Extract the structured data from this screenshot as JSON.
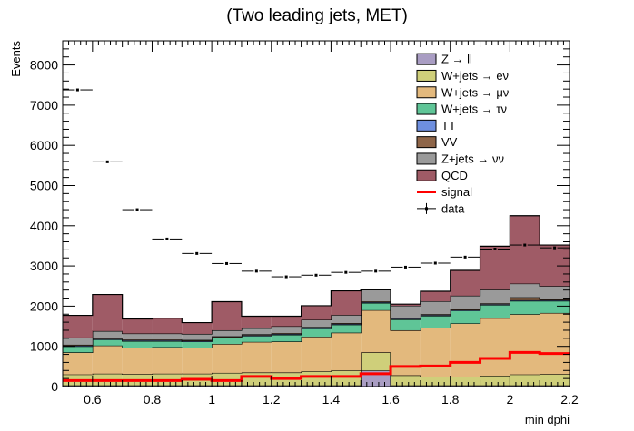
{
  "chart_data": {
    "type": "stacked-histogram",
    "title": "(Two leading jets, MET)",
    "xlabel": "min dphi",
    "ylabel": "Events",
    "xlim": [
      0.5,
      2.2
    ],
    "ylim": [
      0,
      8600
    ],
    "x_ticks": [
      0.6,
      0.8,
      1,
      1.2,
      1.4,
      1.6,
      1.8,
      2,
      2.2
    ],
    "x_tick_labels": [
      "0.6",
      "0.8",
      "1",
      "1.2",
      "1.4",
      "1.6",
      "1.8",
      "2",
      "2.2"
    ],
    "y_ticks": [
      0,
      1000,
      2000,
      3000,
      4000,
      5000,
      6000,
      7000,
      8000
    ],
    "y_tick_labels": [
      "0",
      "1000",
      "2000",
      "3000",
      "4000",
      "5000",
      "6000",
      "7000",
      "8000"
    ],
    "bin_edges": [
      0.5,
      0.6,
      0.7,
      0.8,
      0.9,
      1.0,
      1.1,
      1.2,
      1.3,
      1.4,
      1.5,
      1.6,
      1.7,
      1.8,
      1.9,
      2.0,
      2.1,
      2.2
    ],
    "stack": [
      {
        "name": "Z → ll",
        "color": "#a99dc3",
        "values": [
          30,
          30,
          30,
          30,
          30,
          30,
          30,
          30,
          30,
          30,
          400,
          30,
          30,
          30,
          30,
          30,
          30
        ]
      },
      {
        "name": "W+jets → eν",
        "color": "#cfcf7a",
        "values": [
          270,
          290,
          280,
          290,
          290,
          310,
          320,
          320,
          350,
          370,
          450,
          250,
          210,
          210,
          240,
          270,
          280
        ]
      },
      {
        "name": "W+jets → μν",
        "color": "#e3b97d",
        "values": [
          550,
          700,
          660,
          660,
          650,
          720,
          760,
          770,
          860,
          940,
          1050,
          1120,
          1220,
          1330,
          1430,
          1500,
          1520
        ]
      },
      {
        "name": "W+jets → τν",
        "color": "#5fc597",
        "values": [
          150,
          150,
          160,
          150,
          150,
          150,
          150,
          170,
          200,
          200,
          180,
          270,
          300,
          320,
          330,
          330,
          300
        ]
      },
      {
        "name": "TT",
        "color": "#6e8fdf",
        "values": [
          20,
          20,
          20,
          20,
          20,
          20,
          20,
          20,
          20,
          20,
          20,
          20,
          20,
          20,
          20,
          20,
          20
        ]
      },
      {
        "name": "VV",
        "color": "#8e6548",
        "values": [
          20,
          20,
          20,
          20,
          20,
          20,
          20,
          20,
          20,
          20,
          20,
          20,
          20,
          20,
          20,
          70,
          20
        ]
      },
      {
        "name": "Z+jets → νν",
        "color": "#9a9a9a",
        "values": [
          180,
          170,
          150,
          150,
          150,
          150,
          150,
          170,
          180,
          200,
          290,
          300,
          320,
          330,
          340,
          340,
          330
        ]
      },
      {
        "name": "QCD",
        "color": "#9f5b66",
        "values": [
          550,
          910,
          360,
          380,
          280,
          710,
          300,
          250,
          350,
          600,
          0,
          40,
          250,
          630,
          1080,
          1690,
          1020
        ]
      }
    ],
    "signal": {
      "name": "signal",
      "color": "#ff0000",
      "values": [
        150,
        150,
        150,
        150,
        180,
        150,
        250,
        200,
        250,
        250,
        320,
        500,
        510,
        600,
        700,
        850,
        820
      ]
    },
    "data": {
      "name": "data",
      "x": [
        0.55,
        0.65,
        0.75,
        0.85,
        0.95,
        1.05,
        1.15,
        1.25,
        1.35,
        1.45,
        1.55,
        1.65,
        1.75,
        1.85,
        1.95,
        2.05,
        2.15
      ],
      "y": [
        7380,
        5590,
        4400,
        3670,
        3310,
        3060,
        2870,
        2730,
        2770,
        2840,
        2870,
        2970,
        3070,
        3220,
        3420,
        3520,
        3450
      ]
    },
    "legend_entries": [
      "Z → ll",
      "W+jets → eν",
      "W+jets → μν",
      "W+jets → τν",
      "TT",
      "VV",
      "Z+jets → νν",
      "QCD",
      "signal",
      "data"
    ],
    "legend_position": "top-right",
    "grid": false
  }
}
